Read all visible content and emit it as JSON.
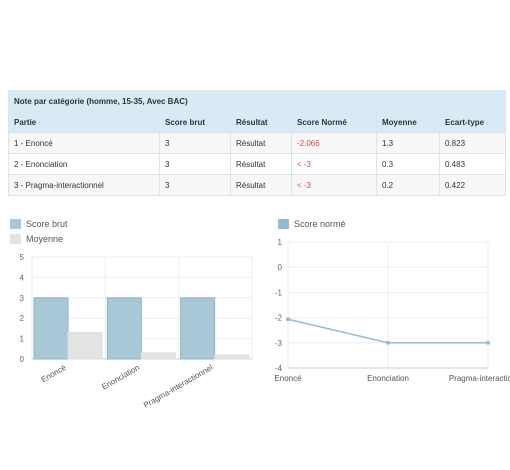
{
  "table": {
    "caption": "Note par catégorie  (homme, 15-35, Avec BAC)",
    "columns": [
      "Partie",
      "Score brut",
      "Résultat",
      "Score Normé",
      "Moyenne",
      "Ecart-type"
    ],
    "rows": [
      {
        "partie": "1 - Enoncé",
        "score_brut": "3",
        "resultat": "Résultat",
        "score_norme": "-2.066",
        "moyenne": "1.3",
        "ecart_type": "0.823"
      },
      {
        "partie": "2 - Enonciation",
        "score_brut": "3",
        "resultat": "Résultat",
        "score_norme": "< -3",
        "moyenne": "0.3",
        "ecart_type": "0.483"
      },
      {
        "partie": "3 - Pragma-interactionnel",
        "score_brut": "3",
        "resultat": "Résultat",
        "score_norme": "< -3",
        "moyenne": "0.2",
        "ecart_type": "0.422"
      }
    ],
    "negative_color": "#d24b4b",
    "header_bg": "#d7eaf6"
  },
  "chart_data": [
    {
      "type": "bar",
      "categories": [
        "Enoncé",
        "Enonciation",
        "Pragma-interactionnel"
      ],
      "series": [
        {
          "name": "Score brut",
          "values": [
            3,
            3,
            3
          ],
          "color": "#a8c8d8"
        },
        {
          "name": "Moyenne",
          "values": [
            1.3,
            0.3,
            0.2
          ],
          "color": "#e3e3e3"
        }
      ],
      "ylim": [
        0,
        5
      ],
      "yticks": [
        "0",
        "1",
        "2",
        "3",
        "4",
        "5"
      ],
      "grid": true,
      "legend_position": "top-left"
    },
    {
      "type": "line",
      "categories": [
        "Enoncé",
        "Enonciation",
        "Pragma-interactionnel"
      ],
      "series": [
        {
          "name": "Score normé",
          "values": [
            -2.066,
            -3,
            -3
          ],
          "color": "#8fbdd3"
        }
      ],
      "ylim": [
        -4,
        1
      ],
      "yticks": [
        "-4",
        "-3",
        "-2",
        "-1",
        "0",
        "1"
      ],
      "grid": true,
      "legend_position": "top-left"
    }
  ]
}
